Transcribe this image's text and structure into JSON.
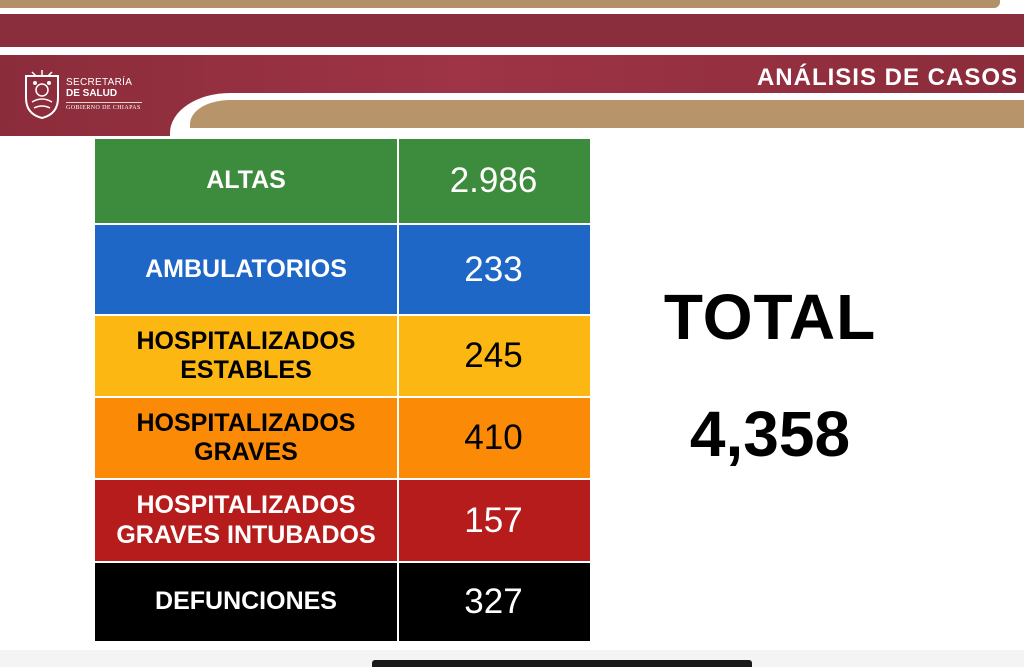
{
  "header": {
    "org_line1": "SECRETARÍA",
    "org_line2": "DE SALUD",
    "org_line3": "GOBIERNO DE CHIAPAS",
    "title": "ANÁLISIS DE CASOS",
    "logo_icon": "coat-of-arms-icon"
  },
  "colors": {
    "maroon": "#8b2c3b",
    "gold": "#b8946a",
    "green": "#3d8b3d",
    "blue": "#1f67c6",
    "yellow": "#fdb713",
    "orange": "#fb8a07",
    "red": "#b71c1c",
    "black": "#000000"
  },
  "table": {
    "rows": [
      {
        "label": "ALTAS",
        "value": "2.986"
      },
      {
        "label": "AMBULATORIOS",
        "value": "233"
      },
      {
        "label": "HOSPITALIZADOS ESTABLES",
        "value": "245"
      },
      {
        "label": "HOSPITALIZADOS GRAVES",
        "value": "410"
      },
      {
        "label": "HOSPITALIZADOS GRAVES INTUBADOS",
        "value": "157"
      },
      {
        "label": "DEFUNCIONES",
        "value": "327"
      }
    ]
  },
  "total": {
    "label": "TOTAL",
    "value": "4,358"
  }
}
